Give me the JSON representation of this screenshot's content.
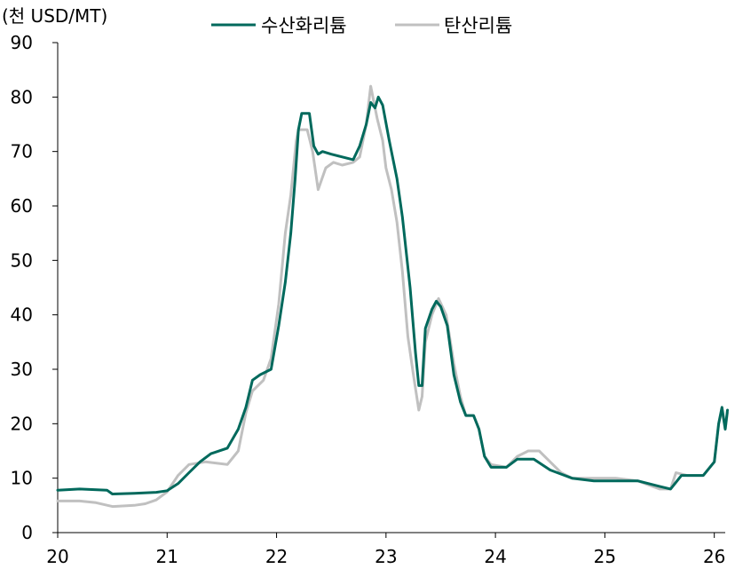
{
  "chart_data": {
    "type": "line",
    "unit_label": "(천 USD/MT)",
    "ylim": [
      0,
      90
    ],
    "y_ticks": [
      "0",
      "10",
      "20",
      "30",
      "40",
      "50",
      "60",
      "70",
      "80",
      "90"
    ],
    "xlim": [
      20,
      26.1
    ],
    "x_ticks": [
      "20",
      "21",
      "22",
      "23",
      "24",
      "25",
      "26"
    ],
    "legend_position": "top",
    "grid": false,
    "series": [
      {
        "name": "수산화리튬",
        "color": "#00695c",
        "points": [
          [
            20.0,
            7.8
          ],
          [
            20.2,
            8.0
          ],
          [
            20.45,
            7.8
          ],
          [
            20.5,
            7.1
          ],
          [
            20.7,
            7.2
          ],
          [
            20.9,
            7.4
          ],
          [
            21.0,
            7.7
          ],
          [
            21.1,
            9.0
          ],
          [
            21.2,
            11.0
          ],
          [
            21.3,
            13.0
          ],
          [
            21.4,
            14.5
          ],
          [
            21.55,
            15.5
          ],
          [
            21.65,
            19.0
          ],
          [
            21.72,
            23.0
          ],
          [
            21.78,
            28.0
          ],
          [
            21.85,
            29.0
          ],
          [
            21.95,
            30.0
          ],
          [
            22.02,
            38.0
          ],
          [
            22.08,
            46.0
          ],
          [
            22.13,
            55.0
          ],
          [
            22.17,
            65.0
          ],
          [
            22.2,
            74.0
          ],
          [
            22.23,
            77.0
          ],
          [
            22.3,
            77.0
          ],
          [
            22.34,
            71.0
          ],
          [
            22.38,
            69.5
          ],
          [
            22.42,
            70.0
          ],
          [
            22.5,
            69.5
          ],
          [
            22.6,
            69.0
          ],
          [
            22.7,
            68.5
          ],
          [
            22.76,
            71.0
          ],
          [
            22.82,
            75.0
          ],
          [
            22.86,
            79.0
          ],
          [
            22.9,
            78.0
          ],
          [
            22.93,
            80.0
          ],
          [
            22.97,
            78.5
          ],
          [
            23.03,
            72.0
          ],
          [
            23.1,
            65.0
          ],
          [
            23.15,
            58.0
          ],
          [
            23.22,
            45.0
          ],
          [
            23.27,
            33.0
          ],
          [
            23.3,
            27.0
          ],
          [
            23.33,
            27.0
          ],
          [
            23.36,
            37.5
          ],
          [
            23.42,
            41.0
          ],
          [
            23.46,
            42.5
          ],
          [
            23.5,
            41.5
          ],
          [
            23.56,
            38.0
          ],
          [
            23.62,
            29.0
          ],
          [
            23.68,
            24.0
          ],
          [
            23.73,
            21.5
          ],
          [
            23.8,
            21.5
          ],
          [
            23.85,
            19.0
          ],
          [
            23.9,
            14.0
          ],
          [
            23.96,
            12.0
          ],
          [
            24.1,
            12.0
          ],
          [
            24.2,
            13.5
          ],
          [
            24.35,
            13.5
          ],
          [
            24.5,
            11.5
          ],
          [
            24.7,
            10.0
          ],
          [
            24.9,
            9.5
          ],
          [
            25.1,
            9.5
          ],
          [
            25.3,
            9.5
          ],
          [
            25.5,
            8.5
          ],
          [
            25.6,
            8.0
          ],
          [
            25.7,
            10.5
          ],
          [
            25.8,
            10.5
          ],
          [
            25.9,
            10.5
          ],
          [
            26.0,
            13.0
          ],
          [
            26.04,
            20.0
          ],
          [
            26.07,
            23.0
          ],
          [
            26.1,
            19.0
          ],
          [
            26.12,
            22.5
          ]
        ]
      },
      {
        "name": "탄산리튬",
        "color": "#c0c0c0",
        "points": [
          [
            20.0,
            5.8
          ],
          [
            20.2,
            5.8
          ],
          [
            20.35,
            5.5
          ],
          [
            20.5,
            4.8
          ],
          [
            20.7,
            5.0
          ],
          [
            20.8,
            5.3
          ],
          [
            20.9,
            6.0
          ],
          [
            21.0,
            7.5
          ],
          [
            21.1,
            10.5
          ],
          [
            21.2,
            12.5
          ],
          [
            21.35,
            13.0
          ],
          [
            21.55,
            12.5
          ],
          [
            21.65,
            15.0
          ],
          [
            21.72,
            22.0
          ],
          [
            21.78,
            26.0
          ],
          [
            21.88,
            28.0
          ],
          [
            21.95,
            32.0
          ],
          [
            22.02,
            42.0
          ],
          [
            22.08,
            55.0
          ],
          [
            22.13,
            62.0
          ],
          [
            22.18,
            72.0
          ],
          [
            22.2,
            74.0
          ],
          [
            22.28,
            74.0
          ],
          [
            22.33,
            70.0
          ],
          [
            22.38,
            63.0
          ],
          [
            22.45,
            67.0
          ],
          [
            22.52,
            68.0
          ],
          [
            22.6,
            67.5
          ],
          [
            22.7,
            68.0
          ],
          [
            22.76,
            69.0
          ],
          [
            22.82,
            75.0
          ],
          [
            22.86,
            82.0
          ],
          [
            22.92,
            76.0
          ],
          [
            22.97,
            72.0
          ],
          [
            23.0,
            67.0
          ],
          [
            23.05,
            63.0
          ],
          [
            23.1,
            57.0
          ],
          [
            23.15,
            48.0
          ],
          [
            23.2,
            36.0
          ],
          [
            23.25,
            29.0
          ],
          [
            23.3,
            22.5
          ],
          [
            23.33,
            25.0
          ],
          [
            23.36,
            35.0
          ],
          [
            23.42,
            40.0
          ],
          [
            23.48,
            43.0
          ],
          [
            23.55,
            40.0
          ],
          [
            23.62,
            31.0
          ],
          [
            23.68,
            25.0
          ],
          [
            23.73,
            21.5
          ],
          [
            23.8,
            21.5
          ],
          [
            23.85,
            19.0
          ],
          [
            23.9,
            14.0
          ],
          [
            23.96,
            12.5
          ],
          [
            24.1,
            12.0
          ],
          [
            24.2,
            14.0
          ],
          [
            24.3,
            15.0
          ],
          [
            24.4,
            15.0
          ],
          [
            24.5,
            13.0
          ],
          [
            24.6,
            11.0
          ],
          [
            24.7,
            10.0
          ],
          [
            24.9,
            10.0
          ],
          [
            25.1,
            10.0
          ],
          [
            25.3,
            9.5
          ],
          [
            25.5,
            8.0
          ],
          [
            25.6,
            8.0
          ],
          [
            25.65,
            11.0
          ],
          [
            25.75,
            10.5
          ],
          [
            25.9,
            10.5
          ],
          [
            26.0,
            13.0
          ],
          [
            26.04,
            20.0
          ],
          [
            26.07,
            22.5
          ],
          [
            26.1,
            19.0
          ],
          [
            26.12,
            22.0
          ]
        ]
      }
    ]
  }
}
